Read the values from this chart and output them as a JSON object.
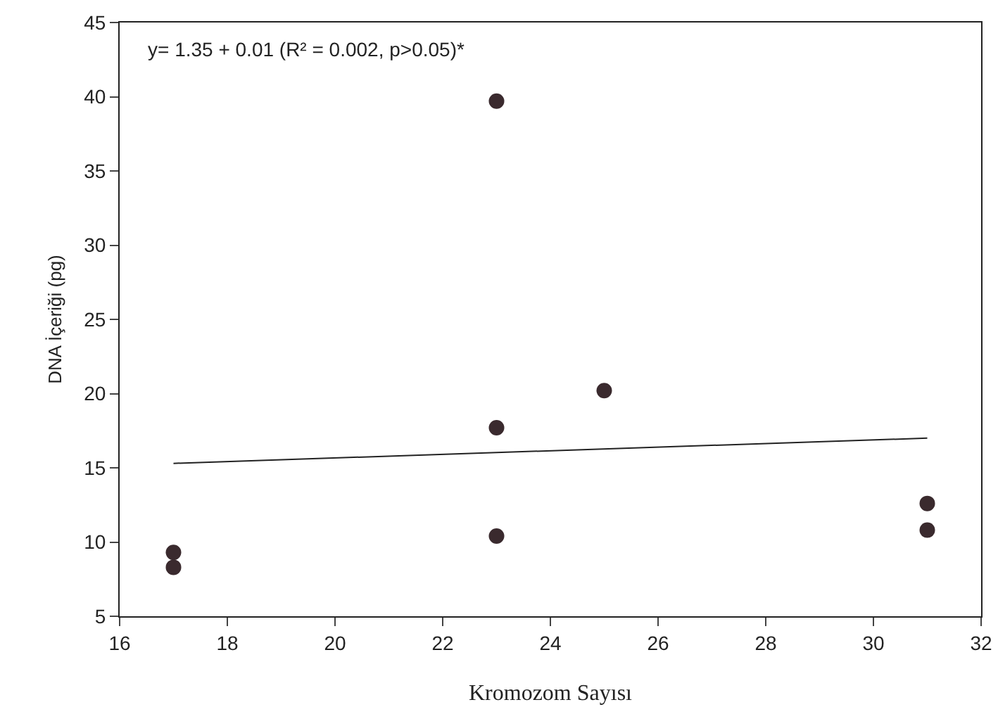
{
  "chart_data": {
    "type": "scatter",
    "xlabel": "Kromozom Sayısı",
    "ylabel": "DNA İçeriği (pg)",
    "annotations": [
      "y= 1.35 + 0.01 (R² = 0.002, p>0.05)*"
    ],
    "grid": false,
    "xlim": [
      16,
      32
    ],
    "xticks": [
      16,
      18,
      20,
      22,
      24,
      26,
      28,
      30,
      32
    ],
    "ylim": [
      5,
      45
    ],
    "yticks": [
      5,
      10,
      15,
      20,
      25,
      30,
      35,
      40,
      45
    ],
    "series": [
      {
        "marker": "circle",
        "color": "#3a2a2e",
        "x": [
          17,
          17,
          23,
          23,
          23,
          25,
          31,
          31
        ],
        "values": [
          9.3,
          8.3,
          39.7,
          17.7,
          10.4,
          20.2,
          12.6,
          10.8
        ]
      },
      {
        "type": "line",
        "color": "#222222",
        "line_style": "solid",
        "x": [
          17,
          31
        ],
        "values": [
          15.3,
          17.0
        ]
      }
    ]
  }
}
